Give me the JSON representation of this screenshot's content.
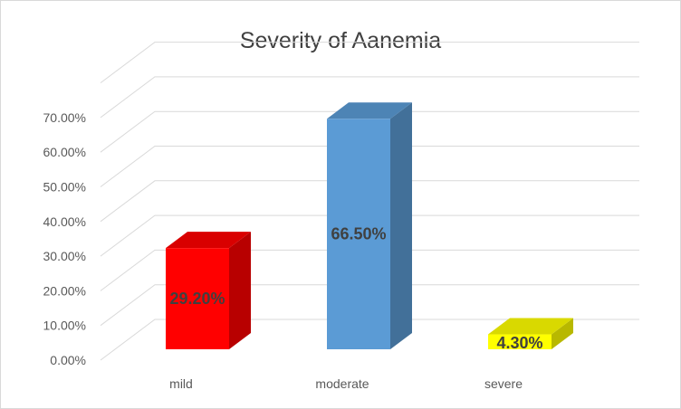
{
  "chart_data": {
    "type": "bar",
    "title": "Severity of Aanemia",
    "categories": [
      "mild",
      "moderate",
      "severe"
    ],
    "values": [
      29.2,
      66.5,
      4.3
    ],
    "data_labels": [
      "29.20%",
      "66.50%",
      "4.30%"
    ],
    "y_ticks": [
      "0.00%",
      "10.00%",
      "20.00%",
      "30.00%",
      "40.00%",
      "50.00%",
      "60.00%",
      "70.00%"
    ],
    "ylim": [
      0,
      70
    ],
    "grid": true,
    "legend": "none",
    "three_d": true,
    "colors": {
      "mild": "#ff0000",
      "moderate": "#5b9bd5",
      "severe": "#ffff00"
    }
  }
}
